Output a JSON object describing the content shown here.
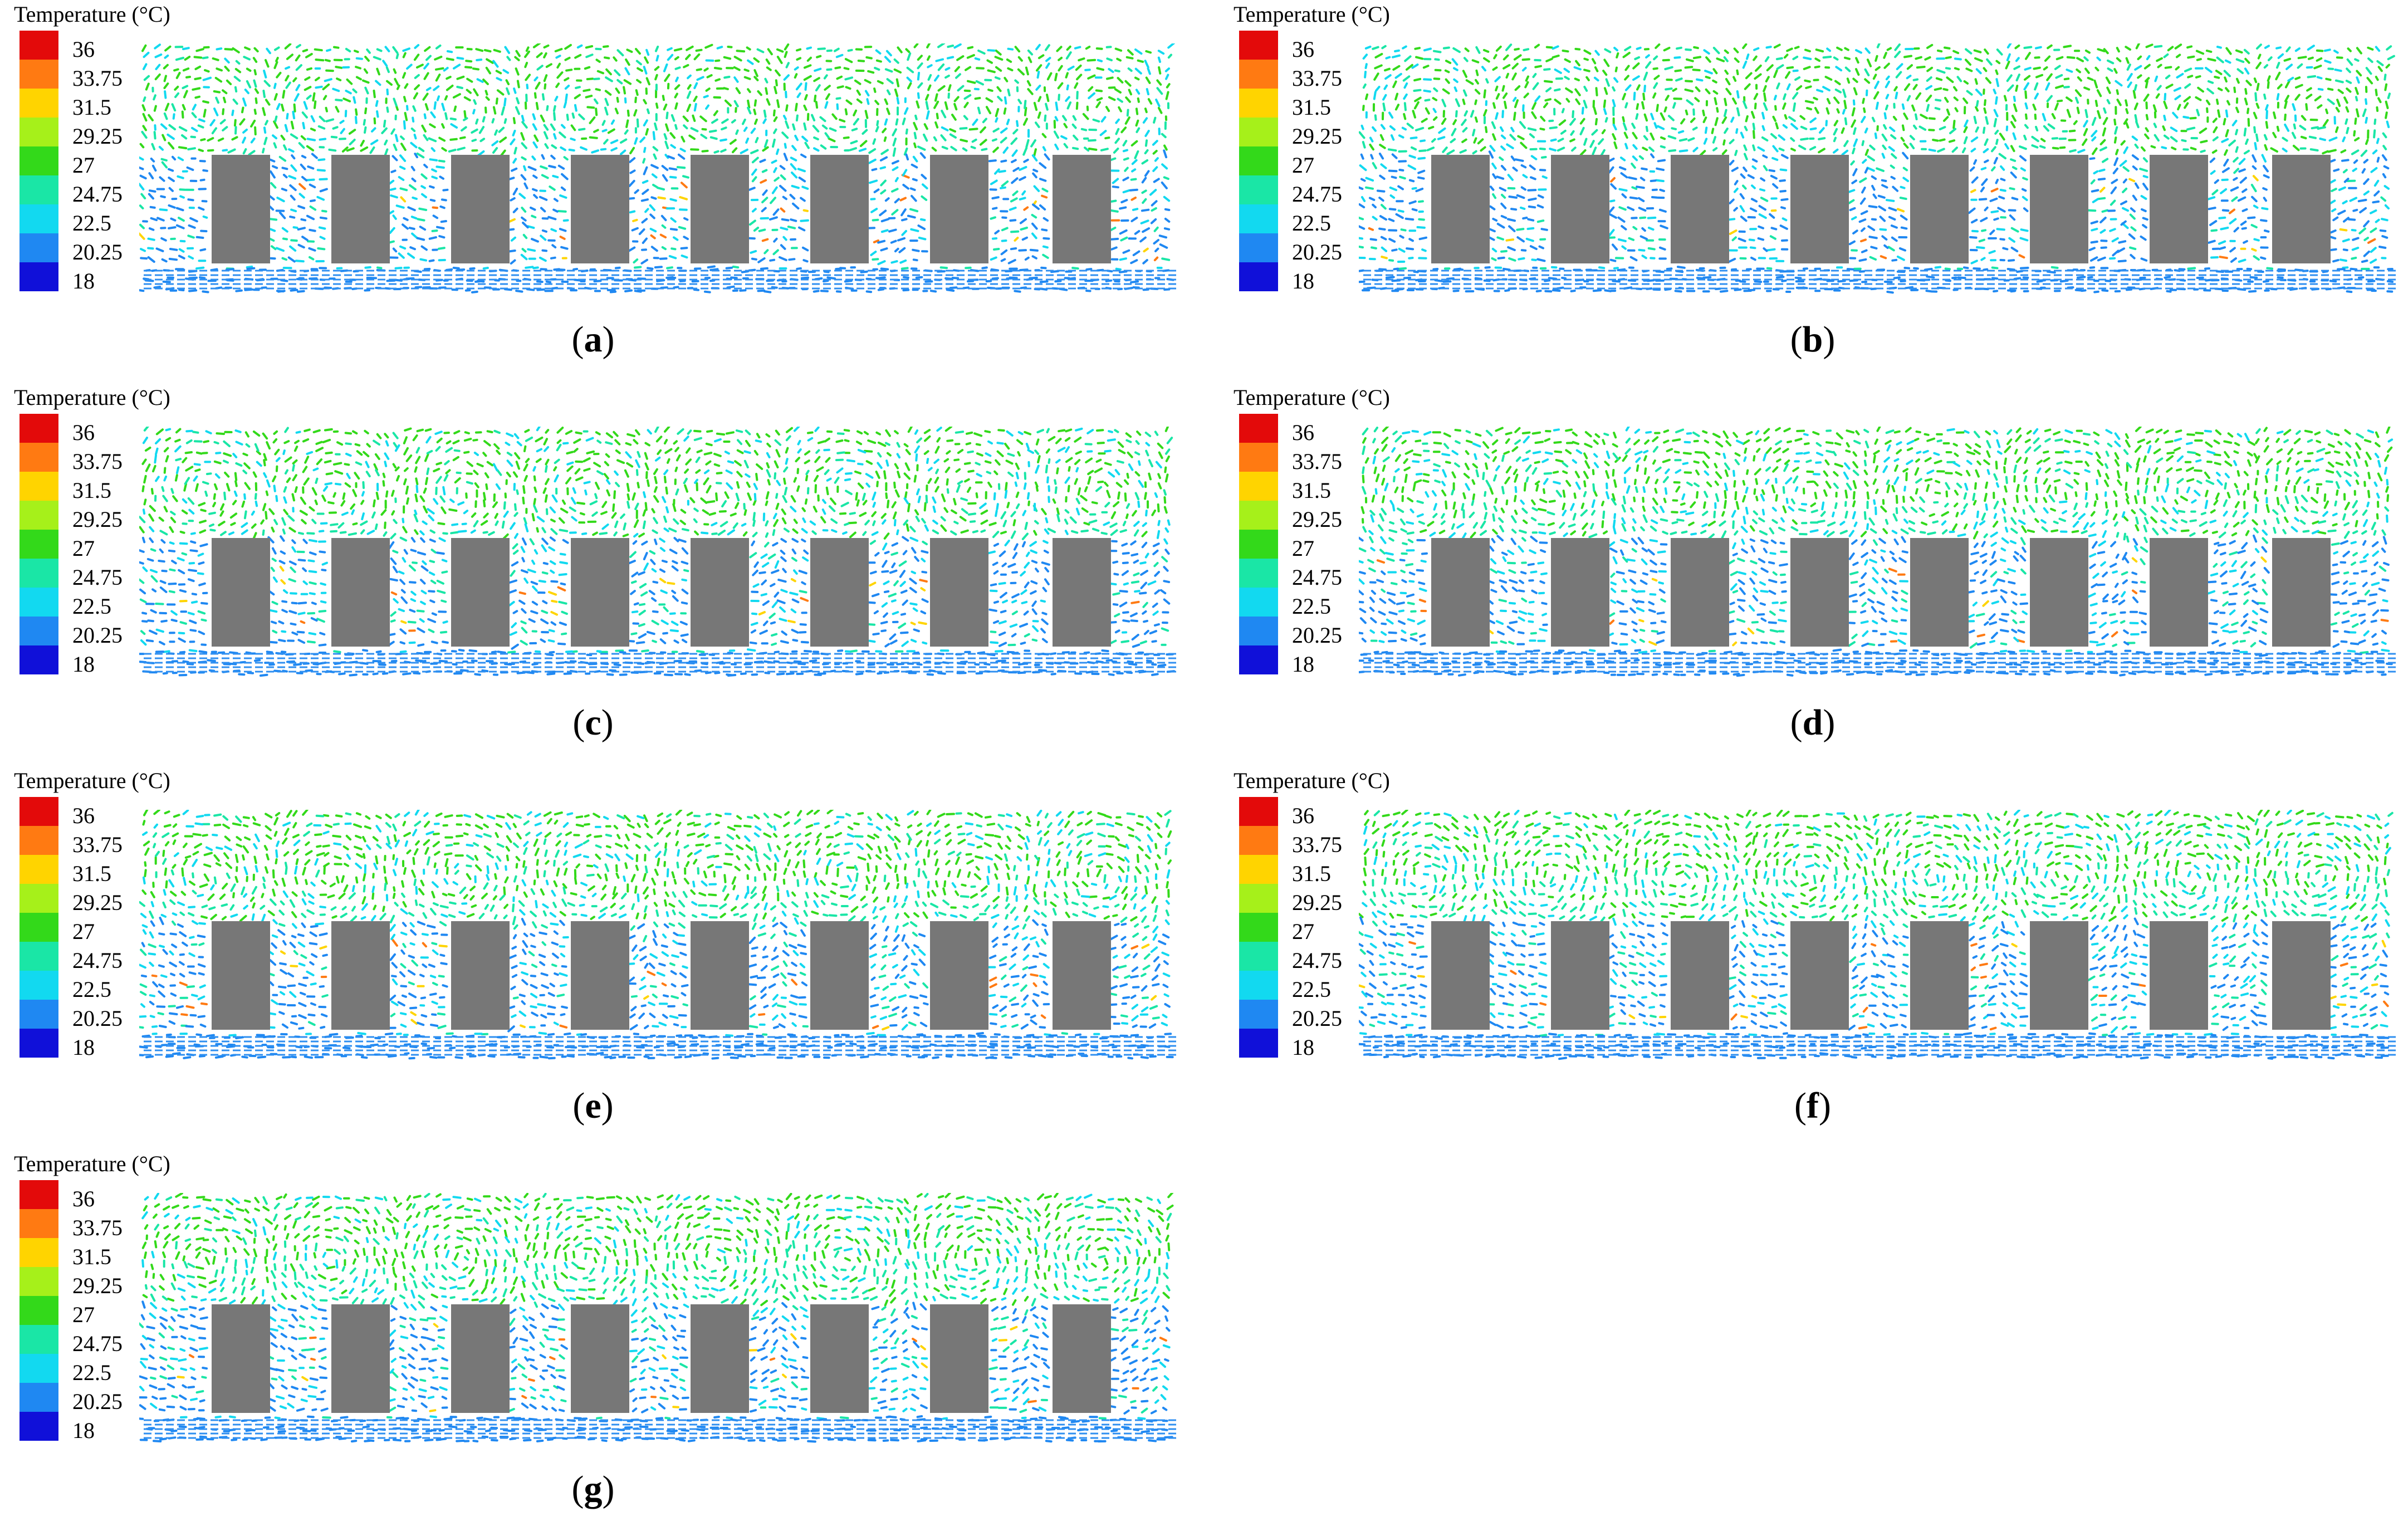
{
  "figure": {
    "legend_title": "Temperature (°C)",
    "legend_ticks": [
      "36",
      "33.75",
      "31.5",
      "29.25",
      "27",
      "24.75",
      "22.5",
      "20.25",
      "18"
    ],
    "colors": {
      "scale": [
        "#e30a0a",
        "#ff7a12",
        "#ffd400",
        "#a6f01a",
        "#33d91a",
        "#1ae6a6",
        "#12d9f0",
        "#1f88f2",
        "#1010d9"
      ],
      "block": "#777777",
      "band": "#2f8ff0"
    },
    "panels": [
      {
        "label": "(a)",
        "letter": "a",
        "top_fraction": 0.28
      },
      {
        "label": "(b)",
        "letter": "b",
        "top_fraction": 0.32
      },
      {
        "label": "(c)",
        "letter": "c",
        "top_fraction": 0.36
      },
      {
        "label": "(d)",
        "letter": "d",
        "top_fraction": 0.3
      },
      {
        "label": "(e)",
        "letter": "e",
        "top_fraction": 0.34
      },
      {
        "label": "(f)",
        "letter": "f",
        "top_fraction": 0.22
      },
      {
        "label": "(g)",
        "letter": "g",
        "top_fraction": 0.26
      }
    ]
  }
}
